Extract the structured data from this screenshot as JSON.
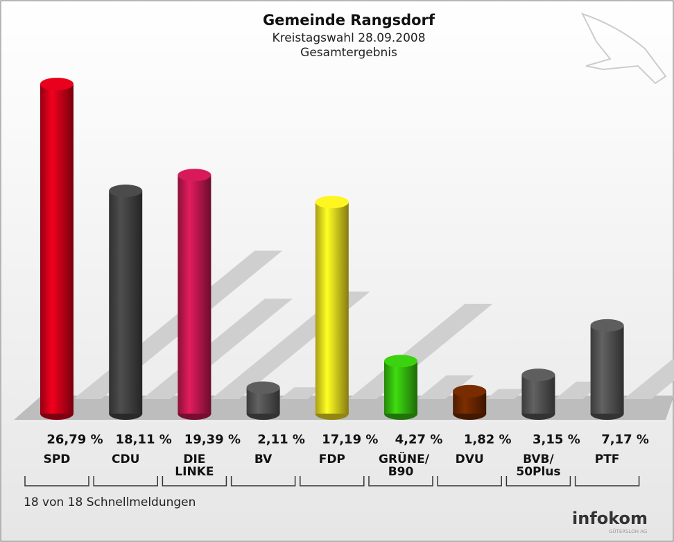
{
  "chart_data": {
    "type": "bar",
    "title": "Gemeinde Rangsdorf",
    "subtitle": [
      "Kreistagswahl 28.09.2008",
      "Gesamtergebnis"
    ],
    "categories": [
      "SPD",
      "CDU",
      "DIE LINKE",
      "BV",
      "FDP",
      "GRÜNE/ B90",
      "DVU",
      "BVB/ 50Plus",
      "PTF"
    ],
    "values": [
      26.79,
      18.11,
      19.39,
      2.11,
      17.19,
      4.27,
      1.82,
      3.15,
      7.17
    ],
    "value_labels": [
      "26,79 %",
      "18,11 %",
      "19,39 %",
      "2,11 %",
      "17,19 %",
      "4,27 %",
      "1,82 %",
      "3,15 %",
      "7,17 %"
    ],
    "colors": [
      "#d4001a",
      "#444444",
      "#c51852",
      "#555555",
      "#f3e01e",
      "#36c00e",
      "#6e2800",
      "#555555",
      "#555555"
    ],
    "footnote": "18 von 18 Schnellmeldungen",
    "logo": "infokom",
    "logo_sub": "GÜTERSLOH AG"
  }
}
